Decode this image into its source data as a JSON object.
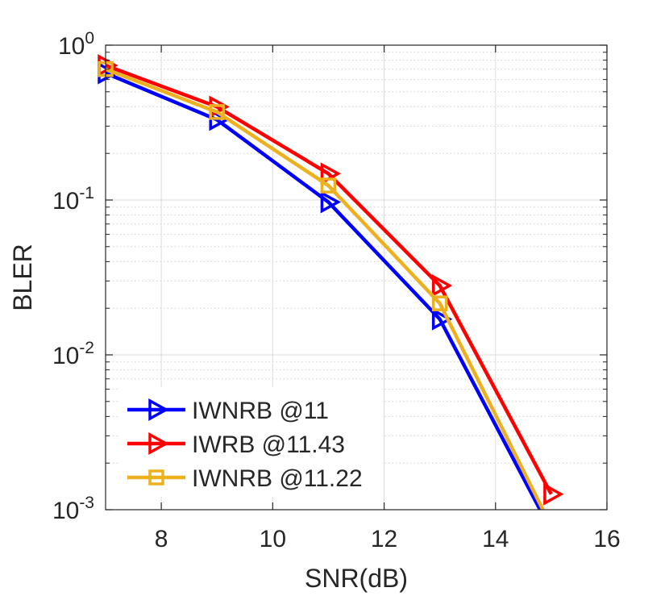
{
  "chart_data": {
    "type": "line",
    "title": "",
    "xlabel": "SNR(dB)",
    "ylabel": "BLER",
    "xlim": [
      7,
      16
    ],
    "ylim": [
      0.001,
      1
    ],
    "yscale": "log",
    "grid": true,
    "legend_position": "bottom-left",
    "xticks": [
      {
        "value": 8,
        "label": "8"
      },
      {
        "value": 10,
        "label": "10"
      },
      {
        "value": 12,
        "label": "12"
      },
      {
        "value": 14,
        "label": "14"
      },
      {
        "value": 16,
        "label": "16"
      }
    ],
    "yticks": [
      {
        "value": 1,
        "base": "10",
        "exp": "0"
      },
      {
        "value": 0.1,
        "base": "10",
        "exp": "-1"
      },
      {
        "value": 0.01,
        "base": "10",
        "exp": "-2"
      },
      {
        "value": 0.001,
        "base": "10",
        "exp": "-3"
      }
    ],
    "series": [
      {
        "name": "IWNRB @11",
        "color": "#0000ff",
        "marker": "triangle-right",
        "x": [
          7,
          9,
          11,
          13,
          14.8
        ],
        "y": [
          0.66,
          0.33,
          0.097,
          0.017,
          0.001
        ]
      },
      {
        "name": "IWRB @11.43",
        "color": "#ff0000",
        "marker": "triangle-right",
        "x": [
          7,
          9,
          11,
          13,
          15
        ],
        "y": [
          0.74,
          0.4,
          0.148,
          0.028,
          0.00126
        ]
      },
      {
        "name": "IWNRB @11.22",
        "color": "#edb120",
        "marker": "square",
        "x": [
          7,
          9,
          11,
          13,
          14.85
        ],
        "y": [
          0.7,
          0.37,
          0.124,
          0.0215,
          0.001
        ]
      }
    ]
  }
}
